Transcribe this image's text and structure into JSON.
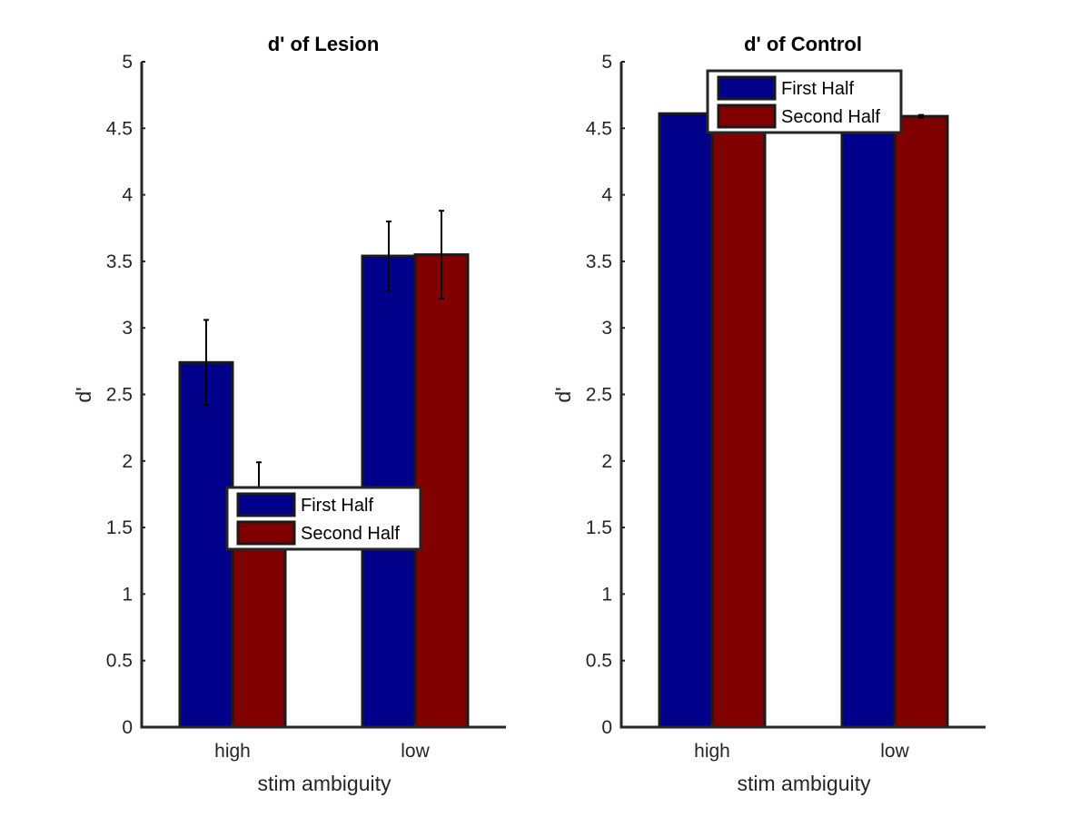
{
  "chart_data": [
    {
      "type": "bar",
      "title": "d' of Lesion",
      "xlabel": "stim ambiguity",
      "ylabel": "d'",
      "categories": [
        "high",
        "low"
      ],
      "ylim": [
        0,
        5
      ],
      "yticks": [
        "0",
        "0.5",
        "1",
        "1.5",
        "2",
        "2.5",
        "3",
        "3.5",
        "4",
        "4.5",
        "5"
      ],
      "series": [
        {
          "name": "First Half",
          "color": "#00008B",
          "values": [
            2.74,
            3.54
          ],
          "errors": [
            0.32,
            0.26
          ]
        },
        {
          "name": "Second Half",
          "color": "#800000",
          "values": [
            1.67,
            3.55
          ],
          "errors": [
            0.32,
            0.33
          ]
        }
      ],
      "legend": "center",
      "grid": false
    },
    {
      "type": "bar",
      "title": "d' of Control",
      "xlabel": "stim ambiguity",
      "ylabel": "d'",
      "categories": [
        "high",
        "low"
      ],
      "ylim": [
        0,
        5
      ],
      "yticks": [
        "0",
        "0.5",
        "1",
        "1.5",
        "2",
        "2.5",
        "3",
        "3.5",
        "4",
        "4.5",
        "5"
      ],
      "series": [
        {
          "name": "First Half",
          "color": "#00008B",
          "values": [
            4.61,
            4.59
          ],
          "errors": [
            0,
            0
          ]
        },
        {
          "name": "Second Half",
          "color": "#800000",
          "values": [
            4.61,
            4.59
          ],
          "errors": [
            0,
            0.01
          ]
        }
      ],
      "legend": "top",
      "grid": false
    }
  ]
}
